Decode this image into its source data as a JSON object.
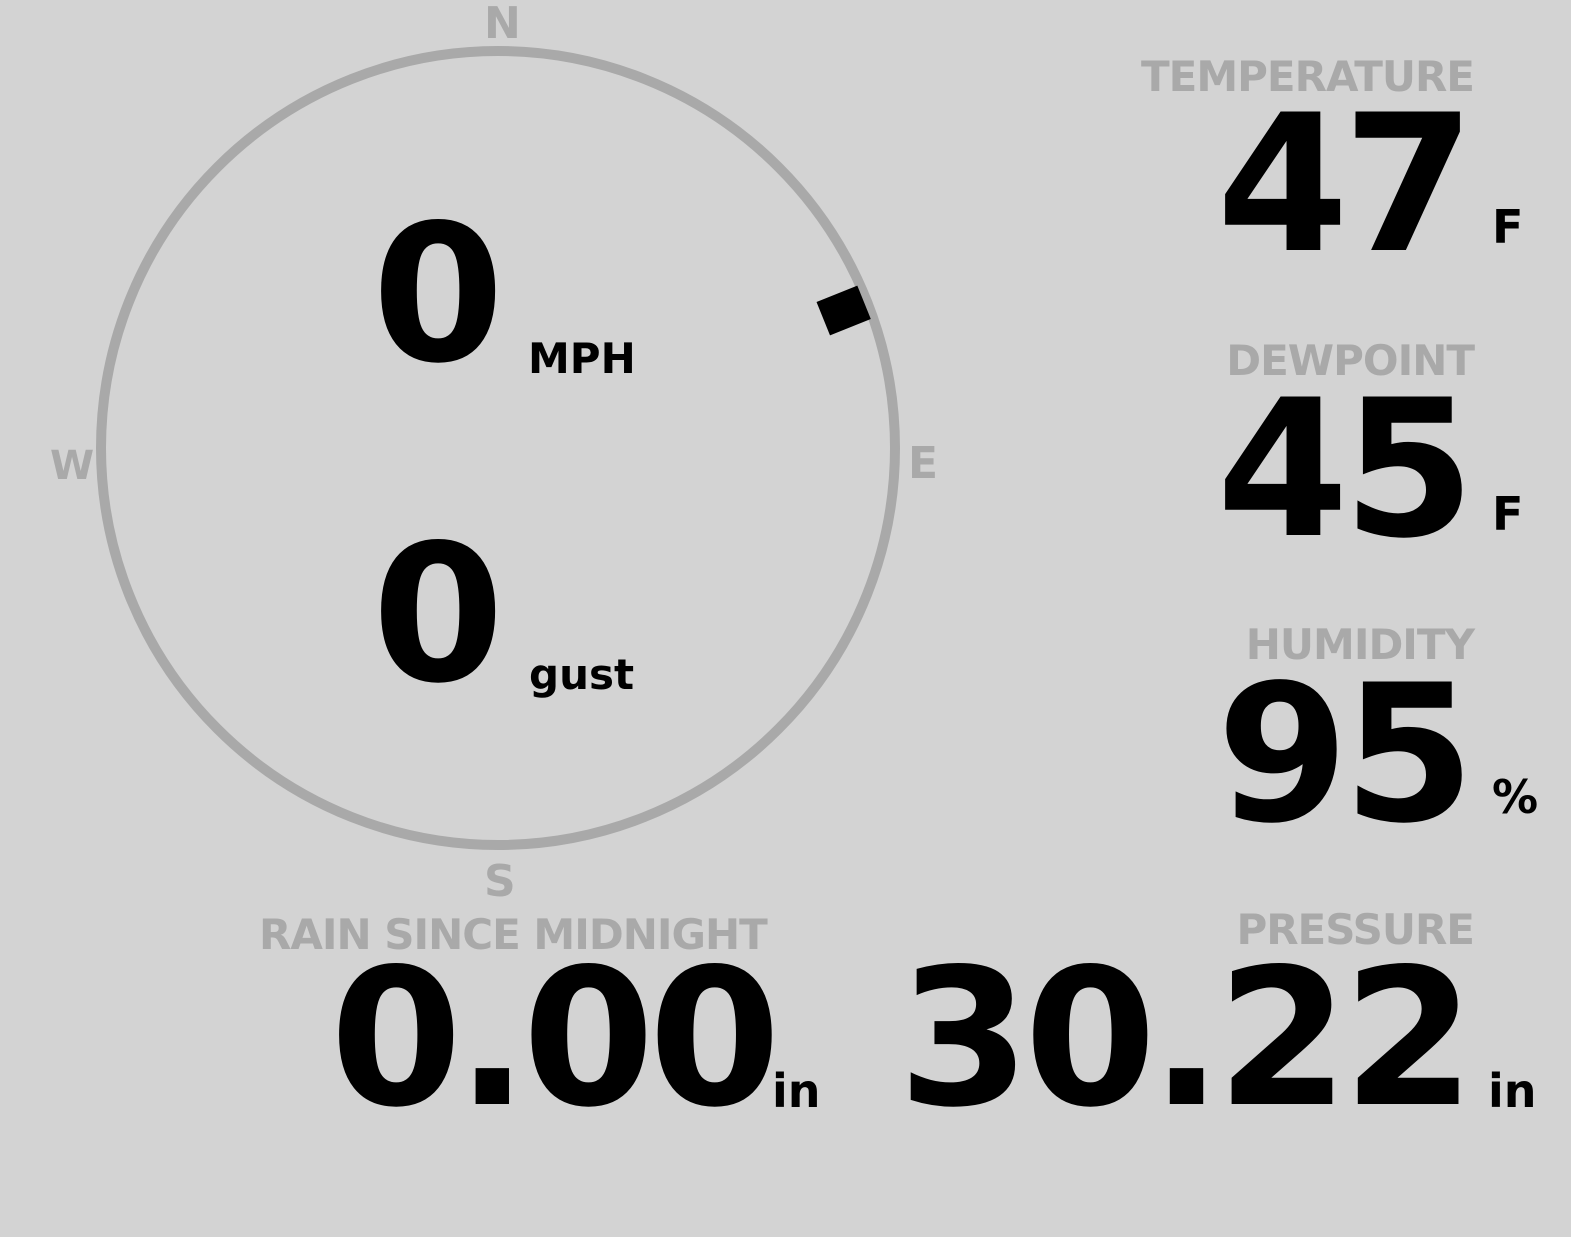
{
  "wind": {
    "speed": "0",
    "speed_unit": "MPH",
    "gust": "0",
    "gust_unit": "gust",
    "direction_deg": 68,
    "cardinals": {
      "n": "N",
      "e": "E",
      "s": "S",
      "w": "W"
    }
  },
  "temperature": {
    "label": "TEMPERATURE",
    "value": "47",
    "unit": "F"
  },
  "dewpoint": {
    "label": "DEWPOINT",
    "value": "45",
    "unit": "F"
  },
  "humidity": {
    "label": "HUMIDITY",
    "value": "95",
    "unit": "%"
  },
  "rain": {
    "label": "RAIN SINCE MIDNIGHT",
    "value": "0.00",
    "unit": "in"
  },
  "pressure": {
    "label": "PRESSURE",
    "value": "30.22",
    "unit": "in"
  },
  "colors": {
    "background": "#d3d3d3",
    "muted": "#a9a9a9",
    "value": "#000000"
  }
}
